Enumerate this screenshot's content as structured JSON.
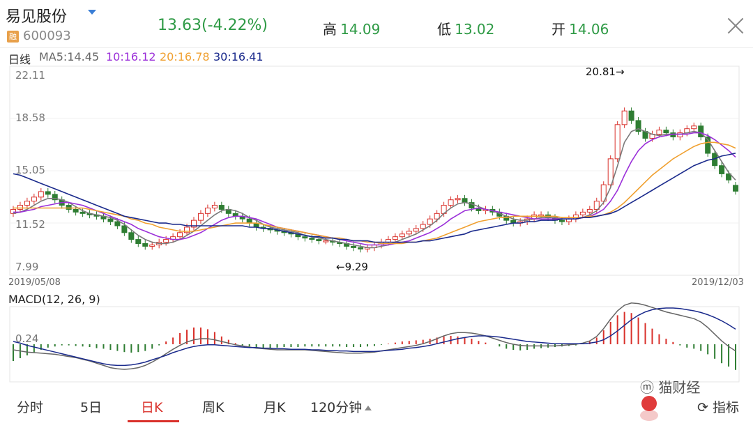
{
  "header": {
    "name": "易见股份",
    "code": "600093",
    "rong_badge": "融",
    "price": "13.63",
    "change": "(-4.22%)",
    "high_label": "高",
    "high_value": "14.09",
    "low_label": "低",
    "low_value": "13.02",
    "open_label": "开",
    "open_value": "14.06"
  },
  "legend": {
    "period": "日线",
    "ma5": "MA5:14.45",
    "ma10": "10:16.12",
    "ma20": "20:16.78",
    "ma30": "30:16.41"
  },
  "colors": {
    "up": "#d9302a",
    "down": "#2e7d32",
    "ma5": "#7a7a7a",
    "ma10": "#9b30d9",
    "ma20": "#f0a030",
    "ma30": "#1a2a8c",
    "price_green": "#2e9a45"
  },
  "chart_data": [
    {
      "type": "candlestick",
      "y_ticks": [
        "22.11",
        "18.58",
        "15.05",
        "11.52",
        "7.99"
      ],
      "ylim": [
        7.99,
        22.11
      ],
      "x_start": "2019/05/08",
      "x_end": "2019/12/03",
      "annotation_high": "20.81→",
      "annotation_low": "←9.29",
      "close": [
        12.3,
        12.6,
        12.9,
        13.2,
        13.6,
        13.4,
        13.0,
        12.6,
        12.3,
        12.1,
        12.0,
        11.9,
        11.8,
        11.6,
        11.4,
        11.1,
        10.6,
        10.1,
        9.8,
        9.6,
        9.7,
        9.9,
        10.1,
        10.3,
        10.6,
        11.0,
        11.5,
        12.0,
        12.4,
        12.6,
        12.3,
        12.0,
        11.8,
        11.6,
        11.3,
        11.0,
        10.9,
        10.8,
        10.7,
        10.6,
        10.5,
        10.3,
        10.2,
        10.1,
        10.0,
        10.0,
        9.9,
        9.8,
        9.6,
        9.5,
        9.4,
        9.5,
        9.7,
        9.9,
        10.1,
        10.3,
        10.5,
        10.7,
        10.9,
        11.2,
        11.6,
        12.0,
        12.6,
        13.0,
        13.1,
        12.8,
        12.4,
        12.2,
        12.3,
        12.1,
        11.8,
        11.5,
        11.3,
        11.4,
        11.6,
        11.9,
        11.9,
        11.7,
        11.5,
        11.4,
        11.6,
        11.9,
        12.1,
        12.3,
        12.9,
        14.1,
        16.0,
        18.5,
        19.5,
        18.8,
        18.0,
        17.5,
        17.8,
        18.1,
        17.9,
        17.6,
        17.9,
        18.2,
        18.4,
        17.6,
        16.4,
        15.5,
        14.9,
        14.45,
        13.63
      ],
      "open": [
        12.0,
        12.3,
        12.6,
        12.9,
        13.2,
        13.6,
        13.4,
        13.0,
        12.6,
        12.3,
        12.1,
        12.0,
        11.9,
        11.8,
        11.6,
        11.4,
        11.1,
        10.6,
        10.1,
        9.8,
        9.6,
        9.7,
        9.9,
        10.1,
        10.3,
        10.6,
        11.0,
        11.5,
        12.0,
        12.4,
        12.6,
        12.3,
        12.0,
        11.8,
        11.6,
        11.3,
        11.0,
        10.9,
        10.8,
        10.7,
        10.6,
        10.5,
        10.3,
        10.2,
        10.1,
        10.0,
        10.0,
        9.9,
        9.8,
        9.6,
        9.5,
        9.4,
        9.5,
        9.7,
        9.9,
        10.1,
        10.3,
        10.5,
        10.7,
        10.9,
        11.2,
        11.6,
        12.0,
        12.6,
        13.0,
        13.1,
        12.8,
        12.4,
        12.2,
        12.3,
        12.1,
        11.8,
        11.5,
        11.3,
        11.4,
        11.6,
        11.9,
        11.9,
        11.7,
        11.5,
        11.4,
        11.6,
        11.9,
        12.1,
        12.3,
        12.9,
        14.1,
        16.0,
        18.5,
        19.5,
        18.8,
        18.0,
        17.5,
        17.8,
        18.1,
        17.9,
        17.6,
        17.9,
        18.2,
        18.4,
        17.6,
        16.4,
        15.5,
        14.9,
        14.06
      ],
      "ma5": [
        12.0,
        12.1,
        12.3,
        12.6,
        12.9,
        13.1,
        13.1,
        13.0,
        12.8,
        12.5,
        12.2,
        12.0,
        11.9,
        11.8,
        11.7,
        11.5,
        11.2,
        10.8,
        10.4,
        10.1,
        9.9,
        9.8,
        9.8,
        9.9,
        10.1,
        10.4,
        10.7,
        11.1,
        11.5,
        11.9,
        12.2,
        12.3,
        12.2,
        12.0,
        11.7,
        11.5,
        11.2,
        11.0,
        10.9,
        10.8,
        10.7,
        10.6,
        10.4,
        10.3,
        10.2,
        10.1,
        10.0,
        9.9,
        9.8,
        9.7,
        9.6,
        9.5,
        9.5,
        9.6,
        9.7,
        9.9,
        10.1,
        10.3,
        10.5,
        10.8,
        11.1,
        11.5,
        12.0,
        12.4,
        12.7,
        12.8,
        12.7,
        12.5,
        12.3,
        12.2,
        12.0,
        11.8,
        11.6,
        11.5,
        11.5,
        11.6,
        11.7,
        11.7,
        11.7,
        11.6,
        11.6,
        11.6,
        11.7,
        11.9,
        12.2,
        12.8,
        13.9,
        15.5,
        17.2,
        18.0,
        18.2,
        18.0,
        17.8,
        17.7,
        17.8,
        17.8,
        17.8,
        17.9,
        18.0,
        17.9,
        17.4,
        16.6,
        15.8,
        15.0,
        14.45
      ],
      "ma10": [
        12.1,
        12.1,
        12.2,
        12.3,
        12.5,
        12.6,
        12.7,
        12.8,
        12.8,
        12.7,
        12.6,
        12.4,
        12.2,
        12.0,
        11.8,
        11.6,
        11.4,
        11.2,
        10.9,
        10.7,
        10.5,
        10.3,
        10.2,
        10.1,
        10.1,
        10.2,
        10.4,
        10.6,
        10.9,
        11.2,
        11.5,
        11.7,
        11.8,
        11.8,
        11.7,
        11.6,
        11.4,
        11.2,
        11.0,
        10.9,
        10.8,
        10.7,
        10.6,
        10.5,
        10.4,
        10.3,
        10.2,
        10.1,
        10.0,
        9.9,
        9.8,
        9.7,
        9.7,
        9.7,
        9.7,
        9.8,
        9.9,
        10.0,
        10.2,
        10.4,
        10.6,
        10.9,
        11.2,
        11.6,
        11.9,
        12.2,
        12.3,
        12.4,
        12.3,
        12.2,
        12.1,
        12.0,
        11.9,
        11.8,
        11.7,
        11.6,
        11.6,
        11.6,
        11.6,
        11.6,
        11.6,
        11.6,
        11.7,
        11.8,
        12.0,
        12.3,
        12.9,
        13.7,
        14.8,
        15.8,
        16.6,
        17.1,
        17.4,
        17.6,
        17.7,
        17.8,
        17.8,
        17.8,
        17.9,
        17.9,
        17.7,
        17.4,
        17.0,
        16.6,
        16.12
      ],
      "ma20": [
        12.4,
        12.4,
        12.4,
        12.4,
        12.4,
        12.4,
        12.4,
        12.4,
        12.4,
        12.4,
        12.4,
        12.3,
        12.2,
        12.1,
        12.0,
        11.9,
        11.8,
        11.6,
        11.5,
        11.3,
        11.2,
        11.0,
        10.9,
        10.8,
        10.7,
        10.7,
        10.7,
        10.8,
        10.9,
        11.0,
        11.1,
        11.2,
        11.3,
        11.3,
        11.3,
        11.3,
        11.2,
        11.1,
        11.0,
        10.9,
        10.8,
        10.7,
        10.6,
        10.5,
        10.4,
        10.3,
        10.2,
        10.2,
        10.1,
        10.0,
        10.0,
        9.9,
        9.9,
        9.8,
        9.8,
        9.8,
        9.8,
        9.9,
        9.9,
        10.0,
        10.1,
        10.2,
        10.4,
        10.6,
        10.8,
        11.0,
        11.2,
        11.4,
        11.5,
        11.6,
        11.7,
        11.7,
        11.8,
        11.8,
        11.8,
        11.8,
        11.8,
        11.8,
        11.8,
        11.7,
        11.7,
        11.7,
        11.7,
        11.8,
        11.8,
        11.9,
        12.1,
        12.4,
        12.8,
        13.3,
        13.8,
        14.3,
        14.8,
        15.2,
        15.6,
        16.0,
        16.3,
        16.6,
        16.9,
        17.1,
        17.2,
        17.2,
        17.1,
        17.0,
        16.78
      ],
      "ma30": [
        14.9,
        14.8,
        14.6,
        14.4,
        14.2,
        14.0,
        13.8,
        13.6,
        13.4,
        13.2,
        13.0,
        12.8,
        12.6,
        12.4,
        12.2,
        12.0,
        11.8,
        11.7,
        11.6,
        11.5,
        11.4,
        11.3,
        11.3,
        11.2,
        11.2,
        11.1,
        11.1,
        11.1,
        11.1,
        11.1,
        11.1,
        11.1,
        11.1,
        11.1,
        11.0,
        11.0,
        10.9,
        10.9,
        10.8,
        10.7,
        10.6,
        10.5,
        10.4,
        10.3,
        10.3,
        10.2,
        10.2,
        10.1,
        10.1,
        10.0,
        10.0,
        10.0,
        9.9,
        9.9,
        9.9,
        9.9,
        9.9,
        9.9,
        9.9,
        10.0,
        10.0,
        10.1,
        10.2,
        10.3,
        10.4,
        10.5,
        10.7,
        10.8,
        10.9,
        11.0,
        11.1,
        11.2,
        11.3,
        11.3,
        11.4,
        11.4,
        11.5,
        11.5,
        11.5,
        11.6,
        11.6,
        11.6,
        11.7,
        11.7,
        11.8,
        11.9,
        12.0,
        12.2,
        12.5,
        12.8,
        13.1,
        13.4,
        13.7,
        14.0,
        14.3,
        14.6,
        14.9,
        15.2,
        15.5,
        15.7,
        15.9,
        16.0,
        16.2,
        16.3,
        16.41
      ]
    },
    {
      "type": "macd",
      "label": "MACD(12, 26, 9)",
      "y_tick": "0.24",
      "hist": [
        -0.3,
        -0.25,
        -0.2,
        -0.15,
        -0.1,
        -0.06,
        -0.04,
        -0.02,
        -0.02,
        -0.03,
        -0.04,
        -0.05,
        -0.07,
        -0.08,
        -0.1,
        -0.12,
        -0.14,
        -0.15,
        -0.14,
        -0.12,
        -0.08,
        -0.02,
        0.05,
        0.12,
        0.2,
        0.26,
        0.3,
        0.3,
        0.27,
        0.22,
        0.14,
        0.08,
        0.02,
        -0.02,
        -0.04,
        -0.06,
        -0.07,
        -0.07,
        -0.06,
        -0.05,
        -0.05,
        -0.05,
        -0.04,
        -0.04,
        -0.04,
        -0.04,
        -0.04,
        -0.04,
        -0.05,
        -0.05,
        -0.05,
        -0.04,
        -0.03,
        -0.01,
        0.01,
        0.03,
        0.05,
        0.06,
        0.07,
        0.08,
        0.1,
        0.12,
        0.14,
        0.15,
        0.14,
        0.12,
        0.1,
        0.06,
        0.03,
        0.0,
        -0.04,
        -0.08,
        -0.1,
        -0.11,
        -0.1,
        -0.08,
        -0.07,
        -0.06,
        -0.05,
        -0.04,
        -0.03,
        -0.02,
        0.01,
        0.05,
        0.12,
        0.25,
        0.4,
        0.52,
        0.58,
        0.56,
        0.48,
        0.38,
        0.28,
        0.18,
        0.1,
        0.04,
        -0.02,
        -0.06,
        -0.08,
        -0.12,
        -0.18,
        -0.26,
        -0.34,
        -0.4,
        -0.46
      ],
      "dif": [
        -0.1,
        -0.12,
        -0.14,
        -0.15,
        -0.16,
        -0.17,
        -0.18,
        -0.2,
        -0.22,
        -0.24,
        -0.27,
        -0.3,
        -0.34,
        -0.38,
        -0.42,
        -0.44,
        -0.45,
        -0.44,
        -0.42,
        -0.38,
        -0.32,
        -0.25,
        -0.17,
        -0.09,
        -0.02,
        0.04,
        0.08,
        0.1,
        0.1,
        0.08,
        0.05,
        0.02,
        -0.01,
        -0.03,
        -0.05,
        -0.07,
        -0.08,
        -0.09,
        -0.1,
        -0.1,
        -0.1,
        -0.1,
        -0.1,
        -0.11,
        -0.12,
        -0.13,
        -0.14,
        -0.15,
        -0.16,
        -0.16,
        -0.16,
        -0.15,
        -0.14,
        -0.12,
        -0.1,
        -0.08,
        -0.06,
        -0.04,
        -0.02,
        0.01,
        0.05,
        0.1,
        0.15,
        0.19,
        0.21,
        0.21,
        0.2,
        0.18,
        0.15,
        0.11,
        0.07,
        0.03,
        0.0,
        -0.02,
        -0.03,
        -0.03,
        -0.03,
        -0.03,
        -0.03,
        -0.02,
        -0.01,
        0.0,
        0.02,
        0.06,
        0.14,
        0.28,
        0.45,
        0.6,
        0.7,
        0.74,
        0.73,
        0.7,
        0.66,
        0.62,
        0.58,
        0.55,
        0.52,
        0.49,
        0.46,
        0.4,
        0.3,
        0.18,
        0.06,
        -0.04,
        -0.12
      ],
      "dea": [
        0.05,
        0.02,
        -0.02,
        -0.05,
        -0.08,
        -0.11,
        -0.14,
        -0.17,
        -0.2,
        -0.23,
        -0.26,
        -0.29,
        -0.32,
        -0.35,
        -0.37,
        -0.38,
        -0.38,
        -0.37,
        -0.35,
        -0.32,
        -0.28,
        -0.24,
        -0.2,
        -0.15,
        -0.11,
        -0.07,
        -0.04,
        -0.02,
        -0.01,
        -0.01,
        -0.02,
        -0.03,
        -0.04,
        -0.05,
        -0.06,
        -0.06,
        -0.07,
        -0.07,
        -0.08,
        -0.08,
        -0.09,
        -0.09,
        -0.09,
        -0.1,
        -0.1,
        -0.11,
        -0.11,
        -0.12,
        -0.12,
        -0.13,
        -0.13,
        -0.13,
        -0.13,
        -0.12,
        -0.11,
        -0.1,
        -0.09,
        -0.07,
        -0.06,
        -0.04,
        -0.02,
        0.01,
        0.04,
        0.07,
        0.1,
        0.12,
        0.14,
        0.15,
        0.15,
        0.14,
        0.13,
        0.11,
        0.09,
        0.07,
        0.05,
        0.04,
        0.03,
        0.02,
        0.01,
        0.01,
        0.01,
        0.01,
        0.01,
        0.02,
        0.04,
        0.08,
        0.15,
        0.24,
        0.34,
        0.44,
        0.52,
        0.58,
        0.62,
        0.64,
        0.65,
        0.65,
        0.64,
        0.62,
        0.6,
        0.57,
        0.53,
        0.48,
        0.42,
        0.35,
        0.27
      ]
    }
  ],
  "tabs": [
    "分时",
    "5日",
    "日K",
    "周K",
    "月K",
    "120分钟",
    "指标"
  ],
  "watermark": "猫财经"
}
